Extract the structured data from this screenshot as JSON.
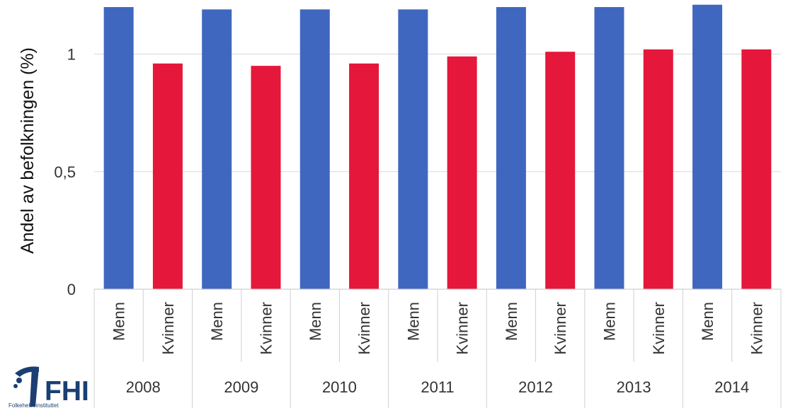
{
  "chart_data": {
    "type": "bar",
    "title": "",
    "xlabel": "",
    "ylabel": "Andel av befolkningen (%)",
    "ylim": [
      0,
      1.2
    ],
    "yticks": [
      0,
      0.5,
      1
    ],
    "ytick_labels": [
      "0",
      "0,5",
      "1"
    ],
    "grid": true,
    "legend": "none",
    "groups": [
      "2008",
      "2009",
      "2010",
      "2011",
      "2012",
      "2013",
      "2014"
    ],
    "subcategories": [
      "Menn",
      "Kvinner"
    ],
    "series": [
      {
        "name": "Menn",
        "color": "#4067c0",
        "values": [
          1.2,
          1.19,
          1.19,
          1.19,
          1.2,
          1.2,
          1.21
        ]
      },
      {
        "name": "Kvinner",
        "color": "#e5173a",
        "values": [
          0.96,
          0.95,
          0.96,
          0.99,
          1.01,
          1.02,
          1.02
        ]
      }
    ]
  },
  "logo": {
    "text": "FHI",
    "subtext": "Folkehelseinstituttet",
    "color": "#1b3f73",
    "icon": "fhi-figure-icon"
  }
}
